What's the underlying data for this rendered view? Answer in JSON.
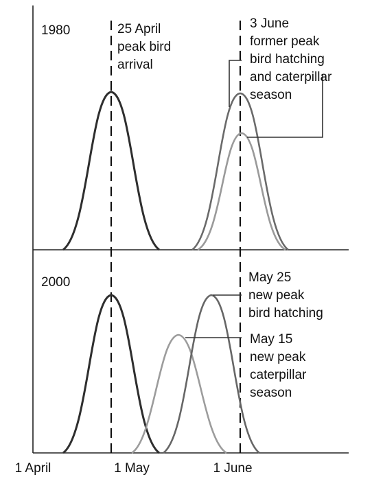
{
  "colors": {
    "background": "#ffffff",
    "axis": "#222222",
    "bird_arrival": "#2e2e2e",
    "bird_hatching_1980": "#6a6a6a",
    "caterpillar_1980": "#9a9a9a",
    "bird_hatching_2000": "#666666",
    "caterpillar_2000": "#9c9c9c"
  },
  "x_axis": {
    "ticks": [
      "1 April",
      "1 May",
      "1 June"
    ]
  },
  "panels": [
    {
      "year": "1980",
      "annotations": {
        "arrival": [
          "25 April",
          "peak bird",
          "arrival"
        ],
        "june": [
          "3 June",
          "former peak",
          "bird hatching",
          "and caterpillar",
          "season"
        ]
      }
    },
    {
      "year": "2000",
      "annotations": {
        "hatching": [
          "May 25",
          "new peak",
          "bird hatching"
        ],
        "caterpillar": [
          "May 15",
          "new peak",
          "caterpillar",
          "season"
        ]
      }
    }
  ]
}
